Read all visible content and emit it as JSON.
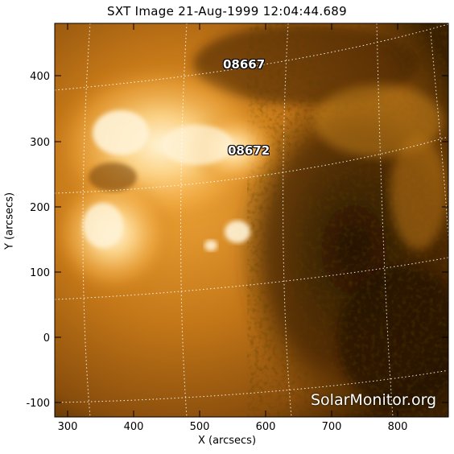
{
  "title": "SXT Image 21-Aug-1999 12:04:44.689",
  "x_axis": {
    "label": "X (arcsecs)",
    "ticks": [
      "300",
      "400",
      "500",
      "600",
      "700",
      "800"
    ]
  },
  "y_axis": {
    "label": "Y (arcsecs)",
    "ticks": [
      "400",
      "300",
      "200",
      "100",
      "0",
      "-100"
    ]
  },
  "regions": [
    {
      "label": "08667"
    },
    {
      "label": "08672"
    }
  ],
  "watermark": "SolarMonitor.org",
  "colors": {
    "frame": "#000000",
    "grid": "#ffffff",
    "bright": "#fff3d6",
    "mid": "#d98a1a",
    "dark": "#2b1600"
  }
}
